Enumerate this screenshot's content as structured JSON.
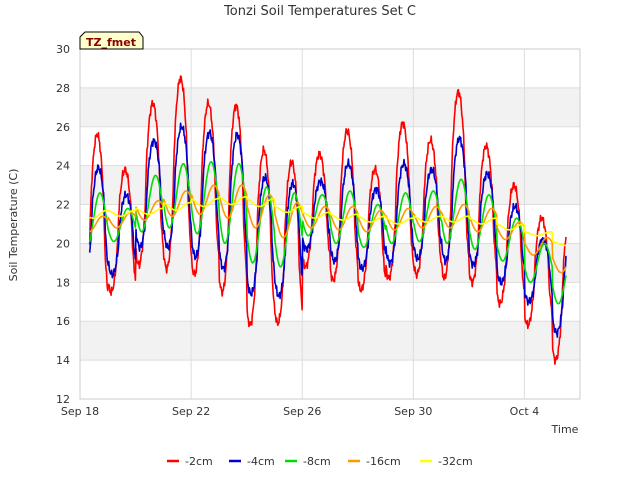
{
  "chart_data": {
    "type": "line",
    "title": "Tonzi Soil Temperatures Set C",
    "xlabel": "Time",
    "ylabel": "Soil Temperature (C)",
    "badge": "TZ_fmet",
    "ylim": [
      12,
      30
    ],
    "yticks": [
      12,
      14,
      16,
      18,
      20,
      22,
      24,
      26,
      28,
      30
    ],
    "xlim": [
      "2012-09-18",
      "2012-10-06"
    ],
    "xticks": [
      {
        "date": "2012-09-18",
        "label": "Sep 18"
      },
      {
        "date": "2012-09-22",
        "label": "Sep 22"
      },
      {
        "date": "2012-09-26",
        "label": "Sep 26"
      },
      {
        "date": "2012-09-30",
        "label": "Sep 30"
      },
      {
        "date": "2012-10-04",
        "label": "Oct 4"
      }
    ],
    "grid": true,
    "legend_position": "bottom",
    "series": [
      {
        "name": "-2cm",
        "color": "#ff0000",
        "min": [
          16.6,
          17.5,
          18.9,
          18.7,
          18.4,
          17.5,
          15.8,
          15.9,
          18.8,
          18.1,
          17.6,
          18.2,
          18.4,
          18.2,
          18.0,
          16.9,
          15.8,
          14.0
        ],
        "max": [
          25.6,
          23.8,
          27.2,
          28.5,
          27.2,
          27.1,
          24.8,
          24.2,
          24.6,
          25.8,
          23.8,
          26.2,
          25.3,
          27.8,
          25.0,
          23.0,
          21.3,
          21.2
        ]
      },
      {
        "name": "-4cm",
        "color": "#0000cc",
        "min": [
          17.9,
          18.4,
          19.8,
          19.8,
          19.3,
          18.7,
          17.4,
          17.3,
          19.7,
          19.1,
          18.7,
          19.0,
          19.2,
          19.1,
          18.9,
          18.0,
          17.0,
          15.4
        ],
        "max": [
          23.9,
          22.5,
          25.3,
          26.0,
          25.7,
          25.6,
          23.4,
          23.1,
          23.2,
          24.1,
          22.8,
          24.1,
          23.8,
          25.4,
          23.6,
          21.9,
          20.2,
          20.1
        ]
      },
      {
        "name": "-8cm",
        "color": "#00dd00",
        "min": [
          19.6,
          20.1,
          20.6,
          20.8,
          20.5,
          20.0,
          19.0,
          18.8,
          20.4,
          20.0,
          19.8,
          20.0,
          20.1,
          20.0,
          19.7,
          19.1,
          18.0,
          16.9
        ],
        "max": [
          22.6,
          21.8,
          23.5,
          24.1,
          24.2,
          24.1,
          22.9,
          22.6,
          22.5,
          22.7,
          22.0,
          22.6,
          22.7,
          23.3,
          22.5,
          21.3,
          20.0,
          19.4
        ]
      },
      {
        "name": "-16cm",
        "color": "#ff9900",
        "min": [
          20.6,
          20.8,
          21.2,
          21.4,
          21.5,
          21.3,
          20.8,
          20.3,
          20.8,
          20.7,
          20.6,
          20.7,
          20.8,
          20.8,
          20.6,
          20.2,
          19.4,
          18.5
        ],
        "max": [
          21.4,
          21.6,
          22.2,
          22.7,
          23.0,
          23.0,
          22.5,
          22.1,
          21.9,
          21.9,
          21.7,
          21.8,
          21.9,
          22.0,
          21.8,
          21.1,
          20.3,
          19.6
        ]
      },
      {
        "name": "-32cm",
        "color": "#ffff00",
        "min": [
          21.3,
          21.4,
          21.5,
          21.7,
          21.9,
          22.0,
          21.9,
          21.6,
          21.3,
          21.2,
          21.1,
          21.0,
          21.1,
          21.1,
          21.0,
          20.7,
          20.4,
          19.9
        ],
        "max": [
          21.7,
          21.7,
          21.8,
          22.1,
          22.3,
          22.4,
          22.3,
          21.9,
          21.6,
          21.5,
          21.4,
          21.3,
          21.4,
          21.4,
          21.3,
          21.0,
          20.6,
          20.1
        ]
      }
    ]
  }
}
